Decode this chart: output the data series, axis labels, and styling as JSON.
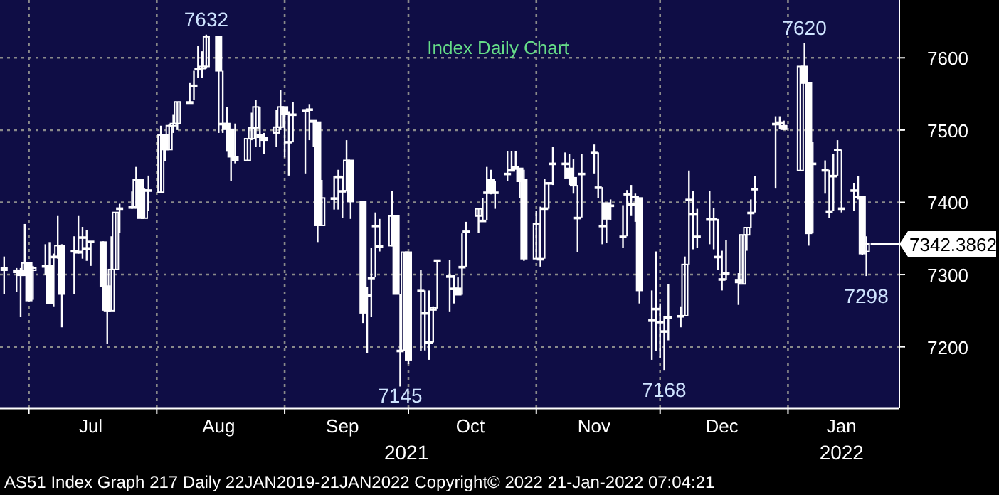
{
  "chart_data": {
    "type": "candlestick",
    "title": "Index Daily Chart",
    "x": [
      "2021-06-25",
      "2021-06-28",
      "2021-06-29",
      "2021-06-30",
      "2021-07-01",
      "2021-07-02",
      "2021-07-05",
      "2021-07-06",
      "2021-07-07",
      "2021-07-08",
      "2021-07-09",
      "2021-07-12",
      "2021-07-13",
      "2021-07-14",
      "2021-07-15",
      "2021-07-16",
      "2021-07-19",
      "2021-07-20",
      "2021-07-21",
      "2021-07-22",
      "2021-07-23",
      "2021-07-26",
      "2021-07-27",
      "2021-07-28",
      "2021-07-29",
      "2021-07-30",
      "2021-08-02",
      "2021-08-03",
      "2021-08-04",
      "2021-08-05",
      "2021-08-06",
      "2021-08-09",
      "2021-08-10",
      "2021-08-11",
      "2021-08-12",
      "2021-08-13",
      "2021-08-16",
      "2021-08-17",
      "2021-08-18",
      "2021-08-19",
      "2021-08-20",
      "2021-08-23",
      "2021-08-24",
      "2021-08-25",
      "2021-08-26",
      "2021-08-27",
      "2021-08-30",
      "2021-08-31",
      "2021-09-01",
      "2021-09-02",
      "2021-09-03",
      "2021-09-06",
      "2021-09-07",
      "2021-09-08",
      "2021-09-09",
      "2021-09-10",
      "2021-09-13",
      "2021-09-14",
      "2021-09-15",
      "2021-09-16",
      "2021-09-17",
      "2021-09-20",
      "2021-09-21",
      "2021-09-22",
      "2021-09-23",
      "2021-09-24",
      "2021-09-27",
      "2021-09-28",
      "2021-09-29",
      "2021-09-30",
      "2021-10-01",
      "2021-10-04",
      "2021-10-05",
      "2021-10-06",
      "2021-10-07",
      "2021-10-08",
      "2021-10-11",
      "2021-10-12",
      "2021-10-13",
      "2021-10-14",
      "2021-10-15",
      "2021-10-18",
      "2021-10-19",
      "2021-10-20",
      "2021-10-21",
      "2021-10-22",
      "2021-10-25",
      "2021-10-26",
      "2021-10-27",
      "2021-10-28",
      "2021-10-29",
      "2021-11-01",
      "2021-11-02",
      "2021-11-03",
      "2021-11-04",
      "2021-11-05",
      "2021-11-08",
      "2021-11-09",
      "2021-11-10",
      "2021-11-11",
      "2021-11-12",
      "2021-11-15",
      "2021-11-16",
      "2021-11-17",
      "2021-11-18",
      "2021-11-19",
      "2021-11-22",
      "2021-11-23",
      "2021-11-24",
      "2021-11-25",
      "2021-11-26",
      "2021-11-29",
      "2021-11-30",
      "2021-12-01",
      "2021-12-02",
      "2021-12-03",
      "2021-12-06",
      "2021-12-07",
      "2021-12-08",
      "2021-12-09",
      "2021-12-10",
      "2021-12-13",
      "2021-12-14",
      "2021-12-15",
      "2021-12-16",
      "2021-12-17",
      "2021-12-20",
      "2021-12-21",
      "2021-12-22",
      "2021-12-23",
      "2021-12-24",
      "2021-12-29",
      "2021-12-30",
      "2021-12-31",
      "2022-01-04",
      "2022-01-05",
      "2022-01-06",
      "2022-01-07",
      "2022-01-10",
      "2022-01-11",
      "2022-01-12",
      "2022-01-13",
      "2022-01-14",
      "2022-01-17",
      "2022-01-18",
      "2022-01-19",
      "2022-01-20"
    ],
    "series": [
      {
        "color": "#ffffff",
        "ohlc": [
          [
            7309,
            7325,
            7273,
            7306
          ],
          [
            7306,
            7309,
            7276,
            7303
          ],
          [
            7306,
            7309,
            7241,
            7299
          ],
          [
            7299,
            7370,
            7299,
            7316
          ],
          [
            7316,
            7316,
            7263,
            7264
          ],
          [
            7306,
            7312,
            7265,
            7309
          ],
          [
            7312,
            7342,
            7299,
            7312
          ],
          [
            7312,
            7345,
            7260,
            7260
          ],
          [
            7325,
            7329,
            7256,
            7325
          ],
          [
            7325,
            7381,
            7322,
            7340
          ],
          [
            7340,
            7342,
            7227,
            7273
          ],
          [
            7333,
            7353,
            7273,
            7333
          ],
          [
            7332,
            7381,
            7329,
            7330
          ],
          [
            7352,
            7366,
            7322,
            7352
          ],
          [
            7337,
            7362,
            7319,
            7337
          ],
          [
            7345,
            7346,
            7312,
            7346
          ],
          [
            7345,
            7346,
            7250,
            7284
          ],
          [
            7284,
            7284,
            7204,
            7250
          ],
          [
            7250,
            7353,
            7250,
            7307
          ],
          [
            7307,
            7386,
            7307,
            7386
          ],
          [
            7392,
            7398,
            7358,
            7392
          ],
          [
            7392,
            7415,
            7391,
            7394
          ],
          [
            7394,
            7449,
            7391,
            7431
          ],
          [
            7431,
            7431,
            7378,
            7378
          ],
          [
            7378,
            7419,
            7378,
            7417
          ],
          [
            7417,
            7437,
            7388,
            7416
          ],
          [
            7414,
            7506,
            7414,
            7493
          ],
          [
            7493,
            7493,
            7457,
            7473
          ],
          [
            7473,
            7508,
            7473,
            7506
          ],
          [
            7506,
            7522,
            7496,
            7509
          ],
          [
            7509,
            7539,
            7500,
            7539
          ],
          [
            7537,
            7565,
            7537,
            7539
          ],
          [
            7562,
            7582,
            7542,
            7562
          ],
          [
            7585,
            7616,
            7572,
            7585
          ],
          [
            7585,
            7609,
            7572,
            7588
          ],
          [
            7588,
            7632,
            7585,
            7629
          ],
          [
            7629,
            7629,
            7496,
            7582
          ],
          [
            7509,
            7582,
            7496,
            7509
          ],
          [
            7509,
            7532,
            7470,
            7501
          ],
          [
            7501,
            7501,
            7429,
            7463
          ],
          [
            7463,
            7509,
            7454,
            7458
          ],
          [
            7458,
            7488,
            7458,
            7488
          ],
          [
            7488,
            7524,
            7486,
            7503
          ],
          [
            7503,
            7542,
            7477,
            7532
          ],
          [
            7493,
            7532,
            7477,
            7490
          ],
          [
            7490,
            7496,
            7467,
            7486
          ],
          [
            7496,
            7528,
            7477,
            7504
          ],
          [
            7504,
            7555,
            7500,
            7532
          ],
          [
            7532,
            7532,
            7462,
            7522
          ],
          [
            7484,
            7526,
            7437,
            7484
          ],
          [
            7522,
            7539,
            7483,
            7522
          ],
          [
            7528,
            7528,
            7440,
            7528
          ],
          [
            7528,
            7536,
            7486,
            7529
          ],
          [
            7513,
            7513,
            7477,
            7511
          ],
          [
            7511,
            7511,
            7345,
            7368
          ],
          [
            7368,
            7431,
            7368,
            7406
          ],
          [
            7406,
            7436,
            7390,
            7406
          ],
          [
            7436,
            7445,
            7390,
            7436
          ],
          [
            7416,
            7436,
            7378,
            7416
          ],
          [
            7416,
            7486,
            7416,
            7458
          ],
          [
            7458,
            7458,
            7377,
            7401
          ],
          [
            7401,
            7401,
            7233,
            7247
          ],
          [
            7272,
            7283,
            7191,
            7271
          ],
          [
            7296,
            7337,
            7241,
            7296
          ],
          [
            7368,
            7386,
            7296,
            7368
          ],
          [
            7340,
            7377,
            7332,
            7340
          ],
          [
            7340,
            7416,
            7339,
            7381
          ],
          [
            7381,
            7381,
            7273,
            7273
          ],
          [
            7195,
            7273,
            7145,
            7195
          ],
          [
            7195,
            7331,
            7194,
            7331
          ],
          [
            7331,
            7331,
            7176,
            7182
          ],
          [
            7278,
            7306,
            7194,
            7278
          ],
          [
            7247,
            7278,
            7195,
            7247
          ],
          [
            7207,
            7278,
            7182,
            7206
          ],
          [
            7251,
            7256,
            7206,
            7254
          ],
          [
            7320,
            7320,
            7253,
            7320
          ],
          [
            7298,
            7320,
            7249,
            7298
          ],
          [
            7281,
            7300,
            7260,
            7281
          ],
          [
            7281,
            7296,
            7272,
            7272
          ],
          [
            7311,
            7357,
            7272,
            7311
          ],
          [
            7360,
            7373,
            7311,
            7360
          ],
          [
            7381,
            7392,
            7358,
            7391
          ],
          [
            7375,
            7406,
            7375,
            7375
          ],
          [
            7414,
            7449,
            7375,
            7414
          ],
          [
            7431,
            7445,
            7411,
            7414
          ],
          [
            7414,
            7429,
            7391,
            7414
          ],
          [
            7440,
            7471,
            7429,
            7440
          ],
          [
            7445,
            7471,
            7445,
            7445
          ],
          [
            7449,
            7471,
            7445,
            7449
          ],
          [
            7447,
            7447,
            7406,
            7429
          ],
          [
            7431,
            7445,
            7319,
            7322
          ],
          [
            7322,
            7388,
            7322,
            7370
          ],
          [
            7322,
            7394,
            7311,
            7322
          ],
          [
            7392,
            7432,
            7322,
            7392
          ],
          [
            7427,
            7427,
            7391,
            7427
          ],
          [
            7454,
            7477,
            7424,
            7454
          ],
          [
            7454,
            7469,
            7432,
            7454
          ],
          [
            7447,
            7467,
            7424,
            7434
          ],
          [
            7434,
            7460,
            7412,
            7423
          ],
          [
            7379,
            7424,
            7331,
            7379
          ],
          [
            7440,
            7467,
            7379,
            7440
          ],
          [
            7469,
            7480,
            7440,
            7469
          ],
          [
            7421,
            7469,
            7406,
            7421
          ],
          [
            7368,
            7421,
            7342,
            7368
          ],
          [
            7399,
            7399,
            7344,
            7377
          ],
          [
            7396,
            7404,
            7375,
            7396
          ],
          [
            7353,
            7396,
            7337,
            7353
          ],
          [
            7412,
            7417,
            7353,
            7412
          ],
          [
            7398,
            7424,
            7381,
            7398
          ],
          [
            7408,
            7412,
            7373,
            7408
          ],
          [
            7406,
            7406,
            7260,
            7278
          ],
          [
            7237,
            7278,
            7182,
            7237
          ],
          [
            7253,
            7332,
            7194,
            7253
          ],
          [
            7235,
            7260,
            7185,
            7235
          ],
          [
            7222,
            7243,
            7168,
            7222
          ],
          [
            7241,
            7287,
            7209,
            7241
          ],
          [
            7243,
            7256,
            7227,
            7243
          ],
          [
            7243,
            7325,
            7243,
            7314
          ],
          [
            7404,
            7444,
            7314,
            7404
          ],
          [
            7384,
            7416,
            7335,
            7384
          ],
          [
            7353,
            7391,
            7337,
            7353
          ],
          [
            7377,
            7416,
            7342,
            7377
          ],
          [
            7377,
            7392,
            7335,
            7377
          ],
          [
            7325,
            7377,
            7306,
            7325
          ],
          [
            7294,
            7333,
            7278,
            7294
          ],
          [
            7302,
            7348,
            7293,
            7302
          ],
          [
            7293,
            7302,
            7258,
            7289
          ],
          [
            7287,
            7355,
            7287,
            7355
          ],
          [
            7355,
            7365,
            7333,
            7365
          ],
          [
            7386,
            7404,
            7365,
            7386
          ],
          [
            7419,
            7436,
            7386,
            7419
          ],
          [
            7509,
            7519,
            7419,
            7509
          ],
          [
            7509,
            7519,
            7501,
            7511
          ],
          [
            7506,
            7513,
            7500,
            7501
          ],
          [
            7444,
            7588,
            7444,
            7588
          ],
          [
            7588,
            7620,
            7565,
            7565
          ],
          [
            7565,
            7565,
            7340,
            7357
          ],
          [
            7454,
            7484,
            7357,
            7454
          ],
          [
            7445,
            7458,
            7412,
            7445
          ],
          [
            7388,
            7445,
            7378,
            7388
          ],
          [
            7437,
            7467,
            7388,
            7437
          ],
          [
            7473,
            7486,
            7437,
            7473
          ],
          [
            7392,
            7473,
            7386,
            7392
          ],
          [
            7417,
            7427,
            7388,
            7417
          ],
          [
            7408,
            7436,
            7404,
            7408
          ],
          [
            7408,
            7408,
            7327,
            7329
          ],
          [
            7332,
            7353,
            7298,
            7342.3862
          ]
        ]
      }
    ],
    "xlim": [
      "2021-06-24",
      "2022-01-28"
    ],
    "xticks": [
      {
        "value": "2021-07-01",
        "label": null
      },
      {
        "value": "2021-07-16",
        "label": "Jul"
      },
      {
        "value": "2021-08-01",
        "label": null
      },
      {
        "value": "2021-08-16",
        "label": "Aug"
      },
      {
        "value": "2021-09-01",
        "label": null
      },
      {
        "value": "2021-09-15",
        "label": "Sep"
      },
      {
        "value": "2021-10-01",
        "label": null
      },
      {
        "value": "2021-10-16",
        "label": "Oct"
      },
      {
        "value": "2021-11-01",
        "label": null
      },
      {
        "value": "2021-11-15",
        "label": "Nov"
      },
      {
        "value": "2021-12-01",
        "label": null
      },
      {
        "value": "2021-12-16",
        "label": "Dec"
      },
      {
        "value": "2022-01-01",
        "label": null
      },
      {
        "value": "2022-01-14",
        "label": "Jan"
      }
    ],
    "ylim": [
      7115,
      7680
    ],
    "yticks": [
      7200,
      7300,
      7400,
      7500,
      7600
    ],
    "grid": true,
    "ref_lines": [
      {
        "axis": "y",
        "value": 7342.3862,
        "label": "7342.3862",
        "color": "#ffffff"
      }
    ],
    "annotations": [
      {
        "text": "7632",
        "x": "2021-08-13",
        "y": 7632
      },
      {
        "text": "7145",
        "x": "2021-09-29",
        "y": 7145
      },
      {
        "text": "7168",
        "x": "2021-12-02",
        "y": 7168
      },
      {
        "text": "7620",
        "x": "2022-01-05",
        "y": 7620
      },
      {
        "text": "7298",
        "x": "2022-01-20",
        "y": 7298
      },
      "2021",
      "2022",
      "AS51 Index Graph 217  Daily 22JAN2019-21JAN2022  Copyright© 2022  21-Jan-2022 07:04:21"
    ]
  }
}
